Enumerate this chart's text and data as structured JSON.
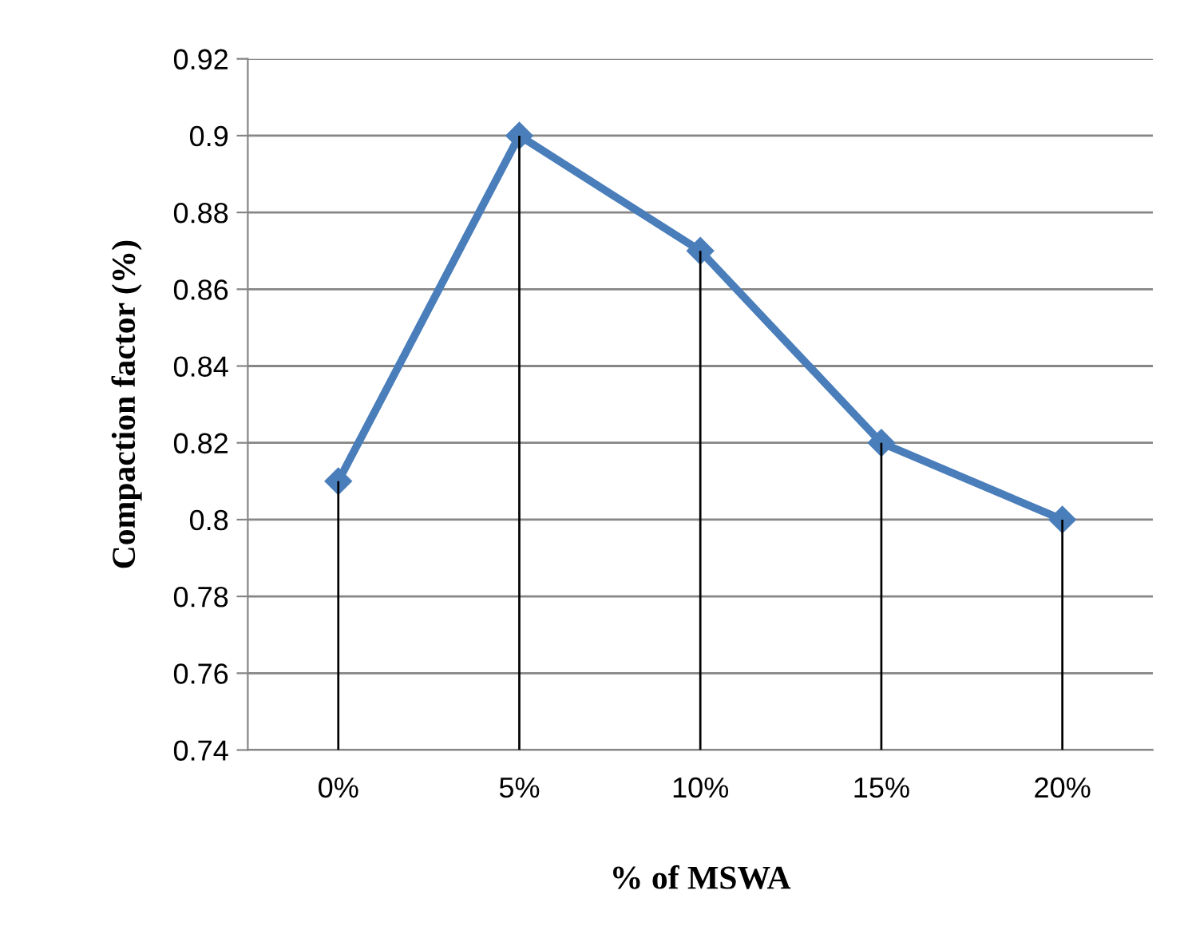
{
  "chart_data": {
    "type": "line",
    "xlabel": "% of MSWA",
    "ylabel": "Compaction factor (%)",
    "categories": [
      "0%",
      "5%",
      "10%",
      "15%",
      "20%"
    ],
    "series": [
      {
        "color": "#4a7ebb",
        "values": [
          0.81,
          0.9,
          0.87,
          0.82,
          0.8
        ]
      },
      {
        "type": "bar",
        "color": "#000000",
        "values": [
          0.81,
          0.9,
          0.87,
          0.82,
          0.8
        ]
      }
    ],
    "ylim": [
      0.74,
      0.92
    ],
    "yticks": [
      0.74,
      0.76,
      0.78,
      "0.8",
      0.82,
      0.84,
      0.86,
      0.88,
      "0.9",
      0.92
    ],
    "grid": "y",
    "marker": "diamond",
    "line_style": "solid"
  }
}
